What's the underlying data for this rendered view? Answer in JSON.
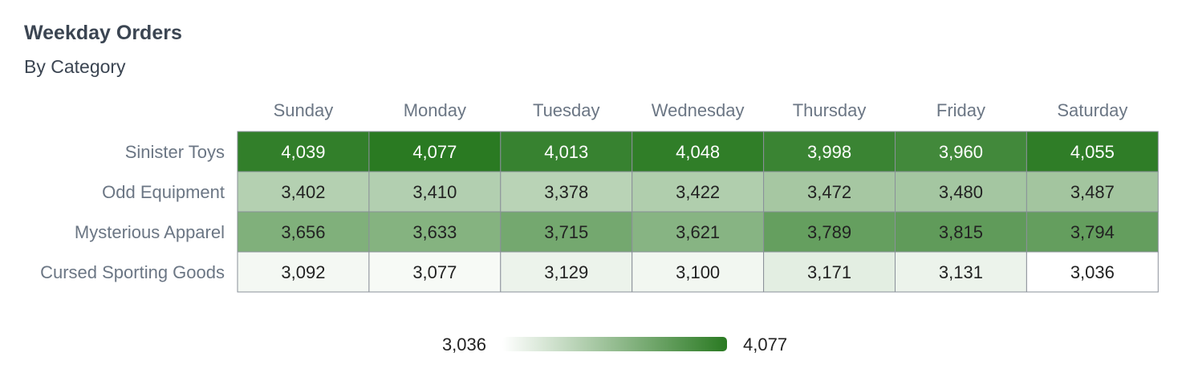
{
  "title": "Weekday Orders",
  "subtitle": "By Category",
  "colors": {
    "low": "#ffffff",
    "high": "#2a7a22",
    "grid_line": "#8a9099",
    "label_text": "#6b7684",
    "dark_text": "#222222",
    "light_text": "#ffffff"
  },
  "legend": {
    "min_label": "3,036",
    "max_label": "4,077"
  },
  "chart_data": {
    "type": "heatmap",
    "title": "Weekday Orders",
    "subtitle": "By Category",
    "columns": [
      "Sunday",
      "Monday",
      "Tuesday",
      "Wednesday",
      "Thursday",
      "Friday",
      "Saturday"
    ],
    "rows": [
      "Sinister Toys",
      "Odd Equipment",
      "Mysterious Apparel",
      "Cursed Sporting Goods"
    ],
    "values": [
      [
        4039,
        4077,
        4013,
        4048,
        3998,
        3960,
        4055
      ],
      [
        3402,
        3410,
        3378,
        3422,
        3472,
        3480,
        3487
      ],
      [
        3656,
        3633,
        3715,
        3621,
        3789,
        3815,
        3794
      ],
      [
        3092,
        3077,
        3129,
        3100,
        3171,
        3131,
        3036
      ]
    ],
    "color_range": [
      3036,
      4077
    ],
    "legend_placement": "bottom-center"
  }
}
